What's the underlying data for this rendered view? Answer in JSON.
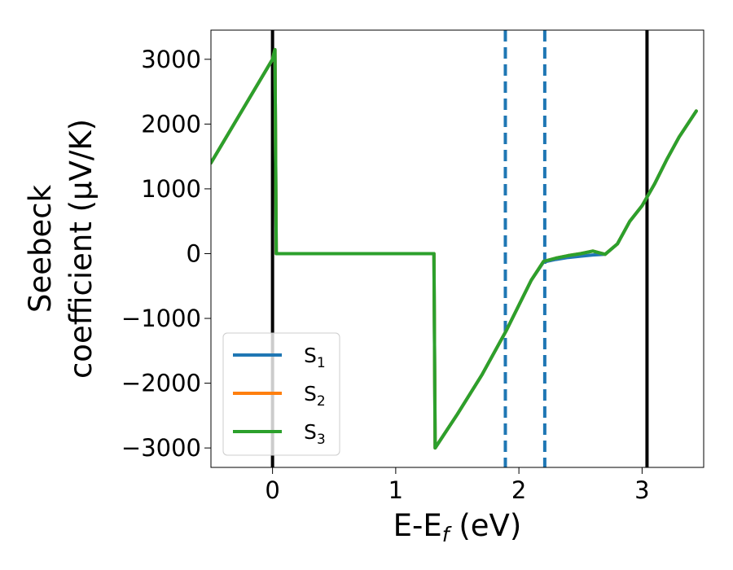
{
  "chart_data": {
    "type": "line",
    "xlabel": "E-E_f (eV)",
    "ylabel": [
      "Seebeck",
      "coefficient  (μV/K)"
    ],
    "xlim": [
      -0.5,
      3.5
    ],
    "ylim": [
      -3300,
      3450
    ],
    "x_ticks": [
      0,
      1,
      2,
      3
    ],
    "x_tick_labels": [
      "0",
      "1",
      "2",
      "3"
    ],
    "y_ticks": [
      -3000,
      -2000,
      -1000,
      0,
      1000,
      2000,
      3000
    ],
    "y_tick_labels": [
      "−3000",
      "−2000",
      "−1000",
      "0",
      "1000",
      "2000",
      "3000"
    ],
    "vertical_lines": [
      {
        "x": 0.0,
        "style": "solid",
        "color": "#000000"
      },
      {
        "x": 3.04,
        "style": "solid",
        "color": "#000000"
      },
      {
        "x": 1.89,
        "style": "dashed",
        "color": "#1f77b4"
      },
      {
        "x": 2.21,
        "style": "dashed",
        "color": "#1f77b4"
      }
    ],
    "series": [
      {
        "name": "S",
        "subscript": "1",
        "color": "#1f77b4",
        "x": [
          -0.5,
          0.0,
          0.02,
          0.03,
          1.31,
          1.32,
          1.5,
          1.7,
          1.9,
          2.1,
          2.2,
          2.3,
          2.4,
          2.5,
          2.6,
          2.7,
          2.8,
          2.9,
          3.0,
          3.1,
          3.2,
          3.3,
          3.44
        ],
        "y": [
          1400,
          3000,
          3150,
          0,
          0,
          -3000,
          -2480,
          -1870,
          -1180,
          -410,
          -130,
          -90,
          -60,
          -40,
          -20,
          -10,
          150,
          500,
          740,
          1070,
          1450,
          1800,
          2200
        ]
      },
      {
        "name": "S",
        "subscript": "2",
        "color": "#ff7f0e",
        "x": [
          -0.5,
          0.0,
          0.02,
          0.03,
          1.31,
          1.32,
          1.5,
          1.7,
          1.9,
          2.1,
          2.2,
          2.3,
          2.4,
          2.5,
          2.6,
          2.7,
          2.8,
          2.9,
          3.0,
          3.1,
          3.2,
          3.3,
          3.44
        ],
        "y": [
          1400,
          3000,
          3150,
          0,
          0,
          -3000,
          -2480,
          -1870,
          -1180,
          -410,
          -120,
          -70,
          -30,
          0,
          40,
          -10,
          150,
          500,
          740,
          1070,
          1450,
          1800,
          2200
        ]
      },
      {
        "name": "S",
        "subscript": "3",
        "color": "#2ca02c",
        "x": [
          -0.5,
          0.0,
          0.02,
          0.03,
          1.31,
          1.32,
          1.5,
          1.7,
          1.9,
          2.1,
          2.2,
          2.3,
          2.4,
          2.5,
          2.6,
          2.7,
          2.8,
          2.9,
          3.0,
          3.1,
          3.2,
          3.3,
          3.44
        ],
        "y": [
          1400,
          3000,
          3150,
          0,
          0,
          -3000,
          -2480,
          -1870,
          -1180,
          -410,
          -120,
          -70,
          -30,
          0,
          40,
          -10,
          150,
          500,
          740,
          1070,
          1450,
          1800,
          2200
        ]
      }
    ],
    "legend_position": "lower-left",
    "grid": false
  }
}
